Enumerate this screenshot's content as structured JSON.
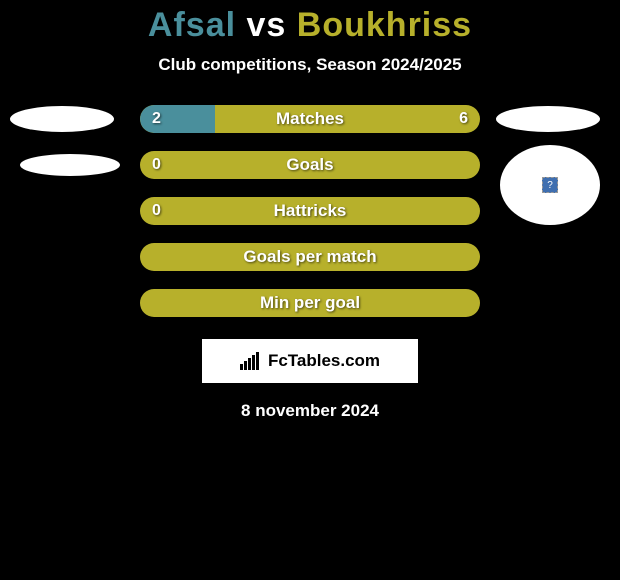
{
  "title": {
    "player1": "Afsal",
    "vs": "vs",
    "player2": "Boukhriss",
    "color_player1": "#4a8f9c",
    "color_player2": "#b7b02b",
    "color_vs": "#ffffff"
  },
  "subtitle": "Club competitions, Season 2024/2025",
  "rows": [
    {
      "label": "Matches",
      "left": "2",
      "right": "6",
      "left_width_pct": 22,
      "right_width_pct": 78,
      "left_color": "#4a8f9c",
      "right_color": "#b7b02b",
      "show_left_val": true,
      "show_right_val": true
    },
    {
      "label": "Goals",
      "left": "0",
      "right": "",
      "left_width_pct": 0,
      "right_width_pct": 100,
      "left_color": "#4a8f9c",
      "right_color": "#b7b02b",
      "show_left_val": true,
      "show_right_val": false
    },
    {
      "label": "Hattricks",
      "left": "0",
      "right": "",
      "left_width_pct": 0,
      "right_width_pct": 100,
      "left_color": "#4a8f9c",
      "right_color": "#b7b02b",
      "show_left_val": true,
      "show_right_val": false
    },
    {
      "label": "Goals per match",
      "left": "",
      "right": "",
      "left_width_pct": 0,
      "right_width_pct": 100,
      "left_color": "#4a8f9c",
      "right_color": "#b7b02b",
      "show_left_val": false,
      "show_right_val": false
    },
    {
      "label": "Min per goal",
      "left": "",
      "right": "",
      "left_width_pct": 0,
      "right_width_pct": 100,
      "left_color": "#4a8f9c",
      "right_color": "#b7b02b",
      "show_left_val": false,
      "show_right_val": false
    }
  ],
  "brand": "FcTables.com",
  "date": "8 november 2024",
  "background_color": "#000000",
  "circle_inner_glyph": "?"
}
